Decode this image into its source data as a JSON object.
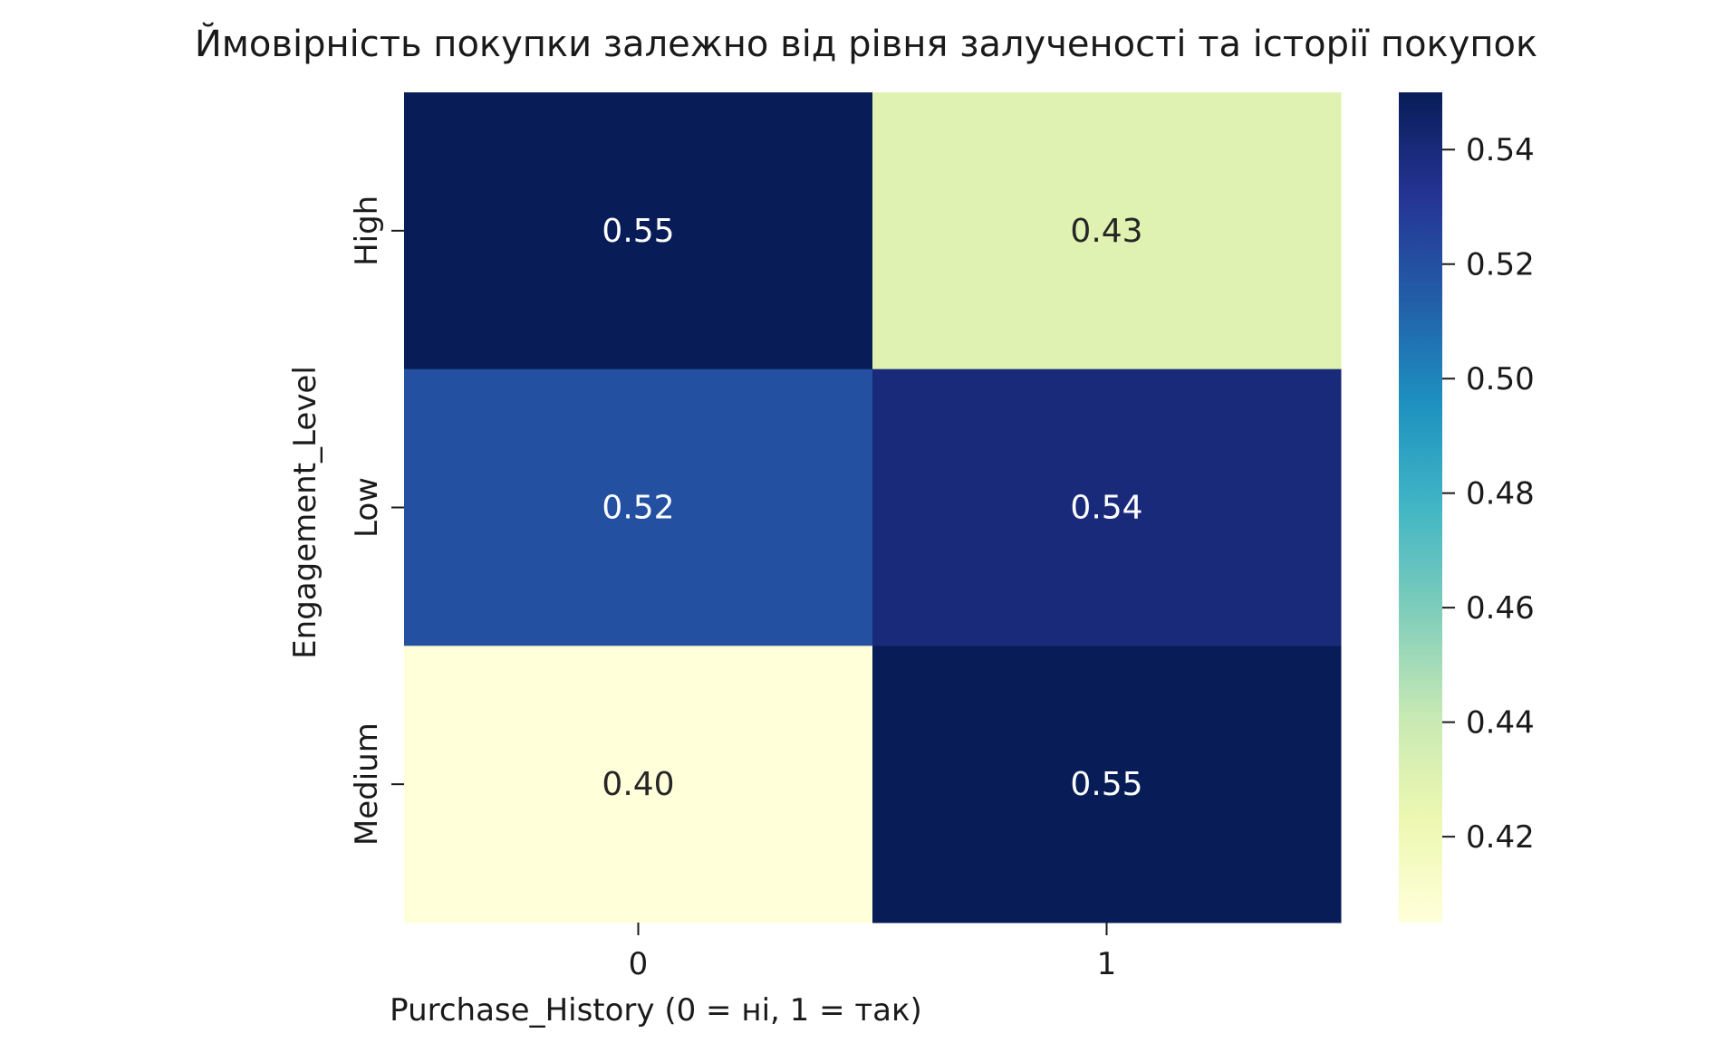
{
  "chart_data": {
    "type": "heatmap",
    "title": "Ймовірність покупки залежно від рівня залученості та історії покупок",
    "xlabel": "Purchase_History (0 = ні, 1 = так)",
    "ylabel": "Engagement_Level",
    "x_categories": [
      "0",
      "1"
    ],
    "y_categories": [
      "High",
      "Low",
      "Medium"
    ],
    "values": [
      [
        0.55,
        0.43
      ],
      [
        0.52,
        0.54
      ],
      [
        0.4,
        0.55
      ]
    ],
    "value_labels": [
      [
        "0.55",
        "0.43"
      ],
      [
        "0.52",
        "0.54"
      ],
      [
        "0.40",
        "0.55"
      ]
    ],
    "colorscale": "YlGnBu",
    "colorbar": {
      "range": [
        0.405,
        0.55
      ],
      "ticks": [
        0.42,
        0.44,
        0.46,
        0.48,
        0.5,
        0.52,
        0.54
      ],
      "tick_labels": [
        "0.42",
        "0.44",
        "0.46",
        "0.48",
        "0.50",
        "0.52",
        "0.54"
      ]
    },
    "grid": false
  }
}
